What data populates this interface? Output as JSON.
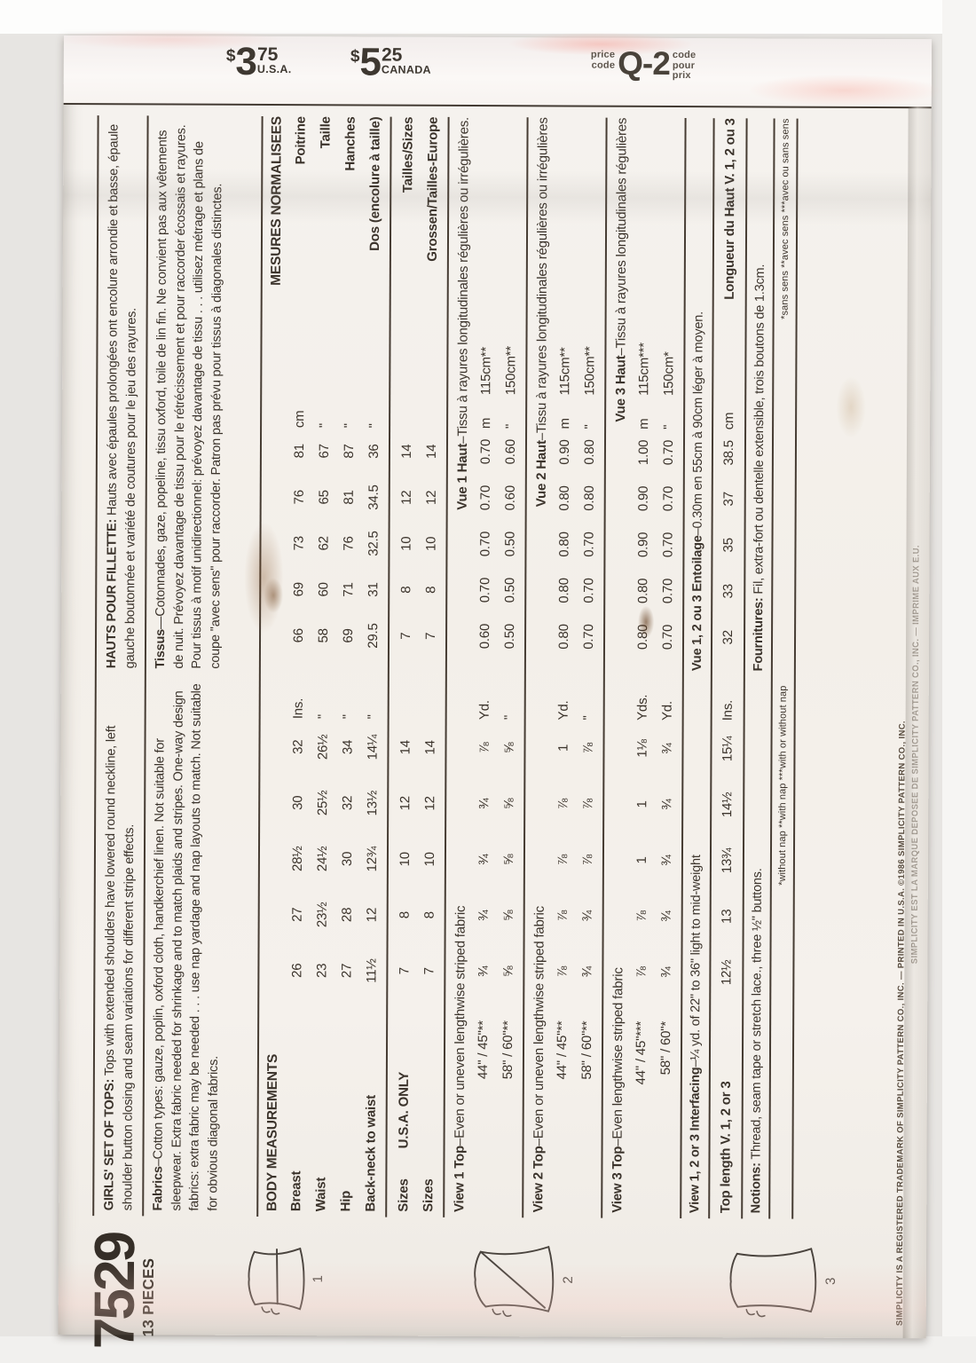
{
  "flap": {
    "usa": {
      "currency": "$",
      "dollars": "3",
      "cents": "75",
      "country": "U.S.A."
    },
    "canada": {
      "currency": "$",
      "dollars": "5",
      "cents": "25",
      "country": "CANADA"
    },
    "price_code": {
      "left_top": "price",
      "left_bottom": "code",
      "code": "Q-2",
      "right_top": "code",
      "right_mid": "pour",
      "right_bottom": "prix"
    }
  },
  "brand": {
    "number": "7529",
    "pieces": "13 PIECES"
  },
  "en": {
    "headline_lead": "GIRLS' SET OF TOPS:",
    "headline_text": " Tops with extended shoulders have lowered round neckline, left shoulder button closing and seam variations for different stripe effects.",
    "fabrics_lead": "Fabrics",
    "fabrics_text": "–Cotton types: gauze, poplin, oxford cloth, handkerchief linen. Not suitable for sleepwear. Extra fabric needed for shrinkage and to match plaids and stripes. One-way design fabrics: extra fabric may be needed . . . use nap yardage and nap layouts to match. Not suitable for obvious diagonal fabrics.",
    "body_title": "BODY MEASUREMENTS",
    "body_rows": [
      {
        "label": "Breast",
        "v": [
          "26",
          "27",
          "28½",
          "30",
          "32"
        ],
        "u": "Ins."
      },
      {
        "label": "Waist",
        "v": [
          "23",
          "23½",
          "24½",
          "25½",
          "26½"
        ],
        "u": "''"
      },
      {
        "label": "Hip",
        "v": [
          "27",
          "28",
          "30",
          "32",
          "34"
        ],
        "u": "''"
      },
      {
        "label": "Back-neck to waist",
        "v": [
          "11½",
          "12",
          "12¾",
          "13½",
          "14¼"
        ],
        "u": "''"
      }
    ],
    "sizes_label": "Sizes",
    "sizes_sub": "U.S.A. ONLY",
    "sizes_rows": [
      {
        "v": [
          "7",
          "8",
          "10",
          "12",
          "14"
        ]
      },
      {
        "v": [
          "7",
          "8",
          "10",
          "12",
          "14"
        ]
      }
    ],
    "views": [
      {
        "lead": "View 1 Top",
        "text": "–Even or uneven lengthwise striped fabric",
        "rows": [
          {
            "label": "44\" / 45\"**",
            "v": [
              "¾",
              "¾",
              "¾",
              "¾",
              "⅞"
            ],
            "u": "Yd."
          },
          {
            "label": "58\" / 60\"**",
            "v": [
              "⅝",
              "⅝",
              "⅝",
              "⅝",
              "⅝"
            ],
            "u": "''"
          }
        ]
      },
      {
        "lead": "View 2 Top",
        "text": "–Even or uneven lengthwise striped fabric",
        "rows": [
          {
            "label": "44\" / 45\"**",
            "v": [
              "⅞",
              "⅞",
              "⅞",
              "⅞",
              "1"
            ],
            "u": "Yd."
          },
          {
            "label": "58\" / 60\"**",
            "v": [
              "¾",
              "¾",
              "⅞",
              "⅞",
              "⅞"
            ],
            "u": "''"
          }
        ]
      },
      {
        "lead": "View 3 Top",
        "text": "–Even lengthwise striped fabric",
        "rows": [
          {
            "label": "44\" / 45\"***",
            "v": [
              "⅞",
              "⅞",
              "1",
              "1",
              "1⅛"
            ],
            "u": "Yds."
          },
          {
            "label": "58\" / 60\"*",
            "v": [
              "¾",
              "¾",
              "¾",
              "¾",
              "¾"
            ],
            "u": "Yd."
          }
        ]
      }
    ],
    "interfacing_lead": "View 1, 2 or 3 Interfacing",
    "interfacing_text": "–¼ yd. of 22\" to 36\" light to mid-weight",
    "toplen_label": "Top length V. 1, 2 or 3",
    "toplen": {
      "v": [
        "12½",
        "13",
        "13¾",
        "14½",
        "15¼"
      ],
      "u": "Ins."
    },
    "notions_lead": "Notions:",
    "notions_text": " Thread, seam tape or stretch lace., three ½\" buttons.",
    "footnote": "*without nap   **with nap   ***with or without nap"
  },
  "fr": {
    "headline_lead": "HAUTS POUR FILLETTE:",
    "headline_text": " Hauts avec épaules prolongées ont encolure arrondie et basse, épaule gauche boutonnée et variété de coutures pour le jeu des rayures.",
    "fabrics_lead": "Tissus",
    "fabrics_text": "—Cotonnades, gaze, popeline, tissu oxford, toile de lin fin. Ne convient pas aux vêtements de nuit. Prévoyez davantage de tissu pour le rétrécissement et pour raccorder écossais et rayures. Pour tissus à motif unidirectionnel: prévoyez davantage de tissu . . . utilisez métrage et plans de coupe ''avec sens'' pour raccorder. Patron pas prévu pour tissus à diagonales distinctes.",
    "body_title": "MESURES NORMALISEES",
    "body_rows": [
      {
        "v": [
          "66",
          "69",
          "73",
          "76",
          "81"
        ],
        "u": "cm",
        "label": "Poitrine"
      },
      {
        "v": [
          "58",
          "60",
          "62",
          "65",
          "67"
        ],
        "u": "''",
        "label": "Taille"
      },
      {
        "v": [
          "69",
          "71",
          "76",
          "81",
          "87"
        ],
        "u": "''",
        "label": "Hanches"
      },
      {
        "v": [
          "29.5",
          "31",
          "32.5",
          "34.5",
          "36"
        ],
        "u": "''",
        "label": "Dos (encolure à taille)"
      }
    ],
    "sizes_rows": [
      {
        "v": [
          "7",
          "8",
          "10",
          "12",
          "14"
        ],
        "label": "Tailles/Sizes"
      },
      {
        "v": [
          "7",
          "8",
          "10",
          "12",
          "14"
        ],
        "label": "Grossen/Tailles-Europe"
      }
    ],
    "vues": [
      {
        "lead": "Vue 1 Haut",
        "text": "–Tissu à rayures longitudinales régulières ou irrégulières.",
        "rows": [
          {
            "v": [
              "0.60",
              "0.70",
              "0.70",
              "0.70",
              "0.70"
            ],
            "u": "m",
            "label": "115cm**"
          },
          {
            "v": [
              "0.50",
              "0.50",
              "0.50",
              "0.60",
              "0.60"
            ],
            "u": "''",
            "label": "150cm**"
          }
        ]
      },
      {
        "lead": "Vue 2 Haut",
        "text": "–Tissu à rayures longitudinales régulières ou irrégulières",
        "rows": [
          {
            "v": [
              "0.80",
              "0.80",
              "0.80",
              "0.80",
              "0.90"
            ],
            "u": "m",
            "label": "115cm**"
          },
          {
            "v": [
              "0.70",
              "0.70",
              "0.70",
              "0.80",
              "0.80"
            ],
            "u": "''",
            "label": "150cm**"
          }
        ]
      },
      {
        "lead": "Vue 3 Haut",
        "text": "–Tissu à rayures longitudinales régulières",
        "rows": [
          {
            "v": [
              "0.80",
              "0.80",
              "0.90",
              "0.90",
              "1.00"
            ],
            "u": "m",
            "label": "115cm***"
          },
          {
            "v": [
              "0.70",
              "0.70",
              "0.70",
              "0.70",
              "0.70"
            ],
            "u": "''",
            "label": "150cm*"
          }
        ]
      }
    ],
    "entoilage_lead": "Vue 1, 2 ou 3 Entoilage",
    "entoilage_text": "–0.30m en 55cm à 90cm léger à moyen.",
    "longueur": {
      "v": [
        "32",
        "33",
        "35",
        "37",
        "38.5"
      ],
      "u": "cm",
      "label": "Longueur du Haut V. 1, 2 ou 3"
    },
    "fournitures_lead": "Fournitures:",
    "fournitures_text": " Fil, extra-fort ou dentelle extensible, trois boutons de 1.3cm.",
    "footnote": "*sans sens  **avec sens  ***avec ou sans sens"
  },
  "diagrams": [
    {
      "number": "1"
    },
    {
      "number": "2"
    },
    {
      "number": "3"
    }
  ],
  "fineprint": {
    "line1": "SIMPLICITY IS A REGISTERED TRADEMARK OF SIMPLICITY PATTERN CO., INC. — PRINTED IN U.S.A. ©1986 SIMPLICITY PATTERN CO., INC.",
    "line2": "SIMPLICITY EST LA MARQUE DEPOSEE DE SIMPLICITY PATTERN CO., INC. — IMPRIME AUX E.U."
  }
}
